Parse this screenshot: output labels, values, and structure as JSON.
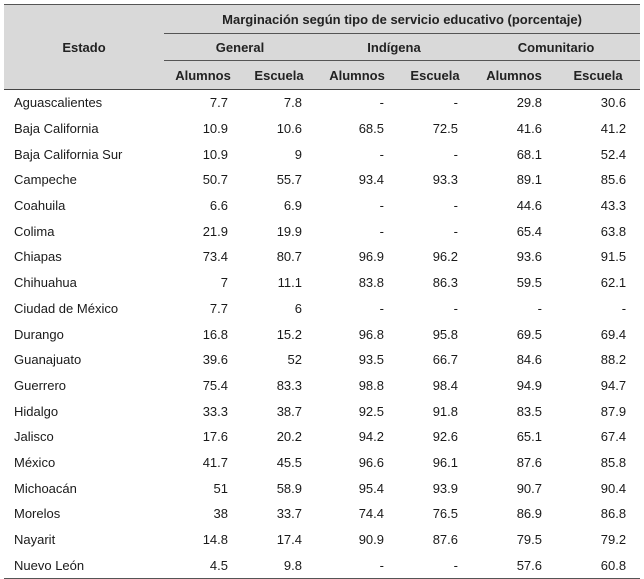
{
  "header": {
    "state_label": "Estado",
    "group_title": "Marginación según tipo de servicio educativo (porcentaje)",
    "service_types": [
      "General",
      "Indígena",
      "Comunitario"
    ],
    "sub_columns": [
      "Alumnos",
      "Escuela",
      "Alumnos",
      "Escuela",
      "Alumnos",
      "Escuela"
    ]
  },
  "rows": [
    {
      "state": "Aguascalientes",
      "values": [
        "7.7",
        "7.8",
        "-",
        "-",
        "29.8",
        "30.6"
      ]
    },
    {
      "state": "Baja California",
      "values": [
        "10.9",
        "10.6",
        "68.5",
        "72.5",
        "41.6",
        "41.2"
      ]
    },
    {
      "state": "Baja California Sur",
      "values": [
        "10.9",
        "9",
        "-",
        "-",
        "68.1",
        "52.4"
      ]
    },
    {
      "state": "Campeche",
      "values": [
        "50.7",
        "55.7",
        "93.4",
        "93.3",
        "89.1",
        "85.6"
      ]
    },
    {
      "state": "Coahuila",
      "values": [
        "6.6",
        "6.9",
        "-",
        "-",
        "44.6",
        "43.3"
      ]
    },
    {
      "state": "Colima",
      "values": [
        "21.9",
        "19.9",
        "-",
        "-",
        "65.4",
        "63.8"
      ]
    },
    {
      "state": "Chiapas",
      "values": [
        "73.4",
        "80.7",
        "96.9",
        "96.2",
        "93.6",
        "91.5"
      ]
    },
    {
      "state": "Chihuahua",
      "values": [
        "7",
        "11.1",
        "83.8",
        "86.3",
        "59.5",
        "62.1"
      ]
    },
    {
      "state": "Ciudad de México",
      "values": [
        "7.7",
        "6",
        "-",
        "-",
        "-",
        "-"
      ]
    },
    {
      "state": "Durango",
      "values": [
        "16.8",
        "15.2",
        "96.8",
        "95.8",
        "69.5",
        "69.4"
      ]
    },
    {
      "state": "Guanajuato",
      "values": [
        "39.6",
        "52",
        "93.5",
        "66.7",
        "84.6",
        "88.2"
      ]
    },
    {
      "state": "Guerrero",
      "values": [
        "75.4",
        "83.3",
        "98.8",
        "98.4",
        "94.9",
        "94.7"
      ]
    },
    {
      "state": "Hidalgo",
      "values": [
        "33.3",
        "38.7",
        "92.5",
        "91.8",
        "83.5",
        "87.9"
      ]
    },
    {
      "state": "Jalisco",
      "values": [
        "17.6",
        "20.2",
        "94.2",
        "92.6",
        "65.1",
        "67.4"
      ]
    },
    {
      "state": "México",
      "values": [
        "41.7",
        "45.5",
        "96.6",
        "96.1",
        "87.6",
        "85.8"
      ]
    },
    {
      "state": "Michoacán",
      "values": [
        "51",
        "58.9",
        "95.4",
        "93.9",
        "90.7",
        "90.4"
      ]
    },
    {
      "state": "Morelos",
      "values": [
        "38",
        "33.7",
        "74.4",
        "76.5",
        "86.9",
        "86.8"
      ]
    },
    {
      "state": "Nayarit",
      "values": [
        "14.8",
        "17.4",
        "90.9",
        "87.6",
        "79.5",
        "79.2"
      ]
    },
    {
      "state": "Nuevo León",
      "values": [
        "4.5",
        "9.8",
        "-",
        "-",
        "57.6",
        "60.8"
      ]
    }
  ]
}
